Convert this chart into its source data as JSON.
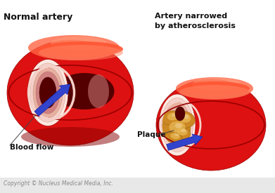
{
  "bg_color": "#ffffff",
  "footer_color": "#e8e8e8",
  "title_left": "Normal artery",
  "title_right": "Artery narrowed\nby atherosclerosis",
  "label_blood_flow": "Blood flow",
  "label_plaque": "Plaque",
  "copyright": "Copyright © Nucleus Medical Media, Inc.",
  "red_bright": "#dd1111",
  "red_dark": "#990000",
  "red_deep": "#660000",
  "red_highlight": "#ff5533",
  "red_sheen": "#ff8866",
  "pink_wall": "#e8b0a0",
  "pink_wall2": "#f5d0c8",
  "pink_wall3": "#fce8e0",
  "lumen_dark": "#550000",
  "plaque_orange": "#cc8822",
  "plaque_light": "#e8b855",
  "plaque_pale": "#f0d090",
  "arrow_blue": "#3344cc",
  "arrow_edge": "#1122aa",
  "text_dark": "#111111",
  "text_footer": "#888888",
  "line_color": "#444444"
}
